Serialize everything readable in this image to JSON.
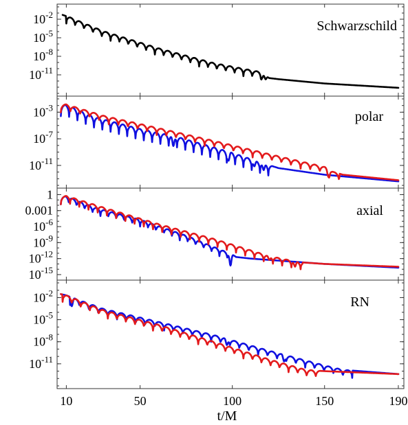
{
  "colors": {
    "black": "#000000",
    "blue": "#1010e0",
    "red": "#e31a1c"
  },
  "chart_data": [
    {
      "type": "line",
      "panel_label": "Schwarzschild",
      "xlabel": "t/M",
      "ylog": true,
      "ylim": [
        1e-14,
        1.0
      ],
      "yticks": [
        {
          "v": 0.01,
          "m": "10",
          "e": "-2"
        },
        {
          "v": 1e-05,
          "m": "10",
          "e": "-5"
        },
        {
          "v": 1e-08,
          "m": "10",
          "e": "-8"
        },
        {
          "v": 1e-11,
          "m": "10",
          "e": "-11"
        }
      ],
      "series": [
        {
          "color": "#000000",
          "envelope": [
            [
              8,
              0.05
            ],
            [
              12,
              0.02
            ],
            [
              30,
              0.00012
            ],
            [
              60,
              2e-07
            ],
            [
              90,
              8e-10
            ],
            [
              115,
              3e-11
            ],
            [
              120,
              3e-12
            ],
            [
              125,
              2e-12
            ],
            [
              150,
              4e-13
            ],
            [
              190,
              8e-14
            ]
          ],
          "osc": {
            "from": 10,
            "to": 118,
            "period": 4.8,
            "depth": 1.2
          },
          "dips": [
            [
              116,
              0.4
            ],
            [
              118,
              0.6
            ]
          ]
        }
      ]
    },
    {
      "type": "line",
      "panel_label": "polar",
      "xlabel": "t/M",
      "ylog": true,
      "ylim": [
        1e-14,
        0.1
      ],
      "yticks": [
        {
          "v": 0.001,
          "m": "10",
          "e": "-3"
        },
        {
          "v": 1e-07,
          "m": "10",
          "e": "-7"
        },
        {
          "v": 1e-11,
          "m": "10",
          "e": "-11"
        }
      ],
      "series": [
        {
          "color": "#1010e0",
          "envelope": [
            [
              7,
              0.01
            ],
            [
              10,
              0.012
            ],
            [
              25,
              0.0002
            ],
            [
              50,
              3e-06
            ],
            [
              70,
              2e-07
            ],
            [
              100,
              8e-10
            ],
            [
              115,
              3e-11
            ],
            [
              125,
              4e-12
            ],
            [
              150,
              4e-13
            ],
            [
              190,
              4e-14
            ]
          ],
          "osc": {
            "from": 7,
            "to": 122,
            "period": 4.5,
            "depth": 1.6
          },
          "dips": [
            [
              68,
              1.5
            ],
            [
              98,
              1.1
            ],
            [
              112,
              0.8
            ],
            [
              117,
              1.0
            ]
          ]
        },
        {
          "color": "#e31a1c",
          "envelope": [
            [
              7,
              0.012
            ],
            [
              10,
              0.015
            ],
            [
              30,
              0.0003
            ],
            [
              60,
              4e-06
            ],
            [
              90,
              5e-08
            ],
            [
              120,
              5e-10
            ],
            [
              150,
              6e-12
            ],
            [
              155,
              1e-12
            ],
            [
              160,
              4e-13
            ],
            [
              190,
              6e-14
            ]
          ],
          "osc": {
            "from": 7,
            "to": 158,
            "period": 5.2,
            "depth": 1.1
          },
          "dips": [
            [
              152,
              0.8
            ]
          ]
        }
      ]
    },
    {
      "type": "line",
      "panel_label": "axial",
      "xlabel": "t/M",
      "ylog": true,
      "ylim": [
        3e-16,
        5
      ],
      "yticks": [
        {
          "v": 1,
          "t": "1"
        },
        {
          "v": 0.001,
          "t": "0.001"
        },
        {
          "v": 1e-06,
          "m": "10",
          "e": "-6"
        },
        {
          "v": 1e-09,
          "m": "10",
          "e": "-9"
        },
        {
          "v": 1e-12,
          "m": "10",
          "e": "-12"
        },
        {
          "v": 1e-15,
          "m": "10",
          "e": "-15"
        }
      ],
      "series": [
        {
          "color": "#1010e0",
          "envelope": [
            [
              7,
              0.3
            ],
            [
              10,
              0.5
            ],
            [
              25,
              0.004
            ],
            [
              50,
              2e-05
            ],
            [
              75,
              2e-08
            ],
            [
              95,
              3e-11
            ],
            [
              100,
              6e-12
            ],
            [
              102,
              2e-12
            ],
            [
              110,
              1e-12
            ],
            [
              150,
              1e-13
            ],
            [
              190,
              2e-14
            ]
          ],
          "osc": {
            "from": 7,
            "to": 100,
            "period": 4.3,
            "depth": 1.3
          },
          "dips": [
            [
              99,
              2.2
            ]
          ]
        },
        {
          "color": "#e31a1c",
          "envelope": [
            [
              7,
              0.3
            ],
            [
              10,
              0.6
            ],
            [
              30,
              0.004
            ],
            [
              60,
              3e-06
            ],
            [
              90,
              5e-09
            ],
            [
              120,
              3e-12
            ],
            [
              130,
              6e-13
            ],
            [
              137,
              2e-13
            ],
            [
              150,
              1e-13
            ],
            [
              190,
              3e-14
            ]
          ],
          "osc": {
            "from": 7,
            "to": 138,
            "period": 5,
            "depth": 1.3
          },
          "dips": [
            [
              120,
              0.7
            ],
            [
              134,
              1.0
            ]
          ]
        }
      ]
    },
    {
      "type": "line",
      "panel_label": "RN",
      "xlabel": "t/M",
      "ylog": true,
      "ylim": [
        1e-14,
        1
      ],
      "yticks": [
        {
          "v": 0.01,
          "m": "10",
          "e": "-2"
        },
        {
          "v": 1e-05,
          "m": "10",
          "e": "-5"
        },
        {
          "v": 1e-08,
          "m": "10",
          "e": "-8"
        },
        {
          "v": 1e-11,
          "m": "10",
          "e": "-11"
        }
      ],
      "series": [
        {
          "color": "#1010e0",
          "envelope": [
            [
              7,
              0.03
            ],
            [
              10,
              0.02
            ],
            [
              30,
              0.0003
            ],
            [
              60,
              5e-06
            ],
            [
              90,
              8e-08
            ],
            [
              120,
              6e-10
            ],
            [
              150,
              6e-12
            ],
            [
              160,
              1.5e-12
            ],
            [
              190,
              4e-13
            ]
          ],
          "osc": {
            "from": 12,
            "to": 165,
            "period": 5.1,
            "depth": 1.0
          },
          "dips": [
            [
              13,
              1.0
            ],
            [
              97,
              0.8
            ],
            [
              128,
              0.8
            ]
          ]
        },
        {
          "color": "#e31a1c",
          "envelope": [
            [
              7,
              0.03
            ],
            [
              10,
              0.02
            ],
            [
              30,
              0.0002
            ],
            [
              60,
              2e-06
            ],
            [
              90,
              1e-08
            ],
            [
              120,
              4e-11
            ],
            [
              140,
              1.5e-12
            ],
            [
              150,
              1e-12
            ],
            [
              190,
              4e-13
            ]
          ],
          "osc": {
            "from": 8,
            "to": 148,
            "period": 4.9,
            "depth": 1.0
          },
          "dips": []
        }
      ]
    }
  ],
  "x_axis": {
    "label": "t/M",
    "xlim": [
      5,
      193
    ],
    "ticks": [
      {
        "v": 10,
        "t": "10"
      },
      {
        "v": 50,
        "t": "50"
      },
      {
        "v": 100,
        "t": "100"
      },
      {
        "v": 150,
        "t": "150"
      },
      {
        "v": 190,
        "t": "190"
      }
    ]
  }
}
